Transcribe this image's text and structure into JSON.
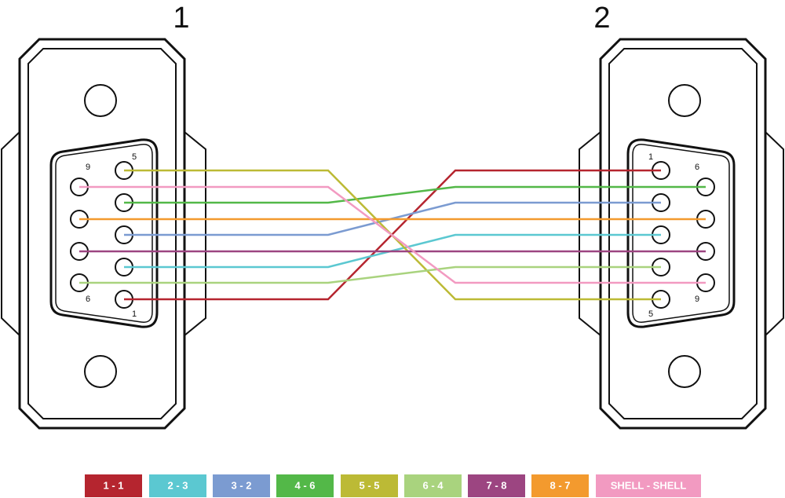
{
  "connectors": [
    {
      "label": "1",
      "pins": [
        "5",
        "9",
        "6",
        "1"
      ]
    },
    {
      "label": "2",
      "pins": [
        "1",
        "6",
        "9",
        "5"
      ]
    }
  ],
  "legend": [
    {
      "label": "1 - 1",
      "color": "#b5252f"
    },
    {
      "label": "2 - 3",
      "color": "#5bc8d1"
    },
    {
      "label": "3 - 2",
      "color": "#7b9bd1"
    },
    {
      "label": "4 - 6",
      "color": "#53b848"
    },
    {
      "label": "5 - 5",
      "color": "#bcba35"
    },
    {
      "label": "6 - 4",
      "color": "#a9d37e"
    },
    {
      "label": "7 - 8",
      "color": "#9c4581"
    },
    {
      "label": "8 - 7",
      "color": "#f39a2e"
    },
    {
      "label": "SHELL - SHELL",
      "color": "#f29ac1"
    }
  ]
}
